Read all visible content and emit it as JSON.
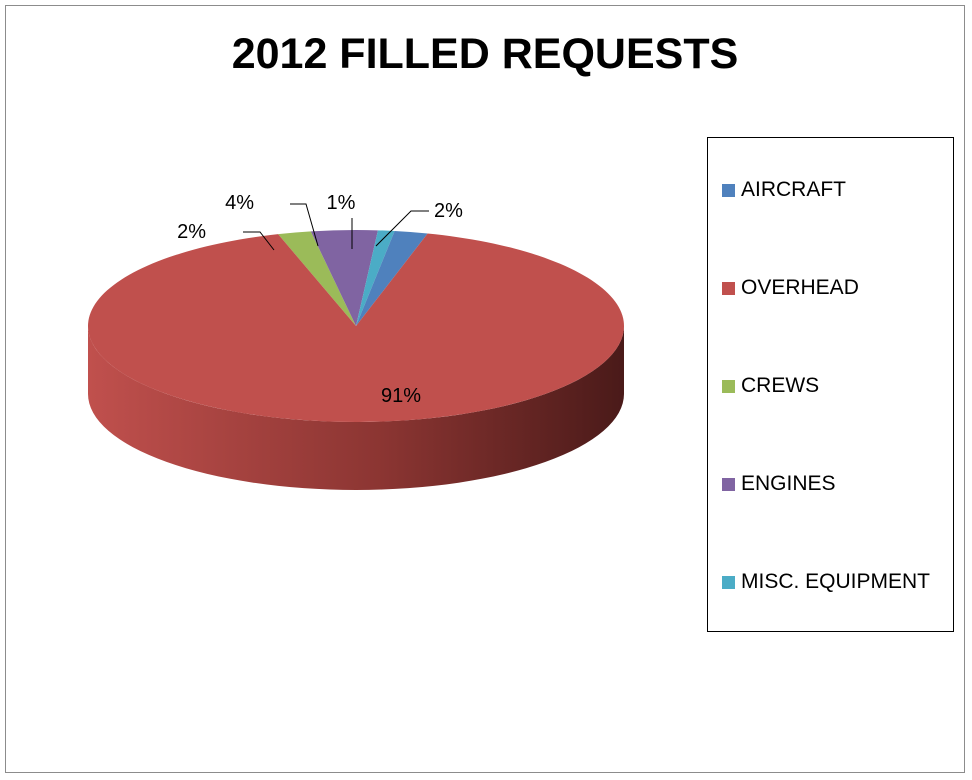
{
  "chart_data": {
    "type": "pie",
    "title": "2012 FILLED REQUESTS",
    "slices": [
      {
        "label": "AIRCRAFT",
        "value": 2,
        "display": "2%",
        "color": "#4f81bd"
      },
      {
        "label": "OVERHEAD",
        "value": 91,
        "display": "91%",
        "color": "#c0504d"
      },
      {
        "label": "CREWS",
        "value": 2,
        "display": "2%",
        "color": "#9bbb59"
      },
      {
        "label": "ENGINES",
        "value": 4,
        "display": "4%",
        "color": "#8064a2"
      },
      {
        "label": "MISC. EQUIPMENT",
        "value": 1,
        "display": "1%",
        "color": "#4bacc6"
      }
    ],
    "legend_position": "right",
    "style": "3d"
  }
}
